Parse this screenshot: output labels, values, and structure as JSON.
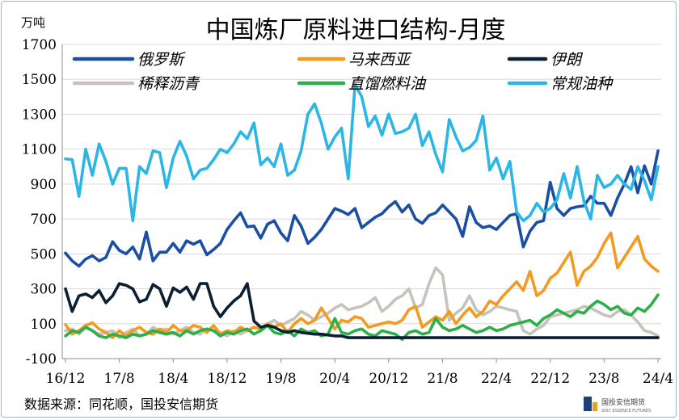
{
  "chart_data": {
    "type": "line",
    "title": "中国炼厂原料进口结构-月度",
    "unit_label": "万吨",
    "source": "数据来源：同花顺，国投安信期货",
    "logo": {
      "cn": "国投安信期货",
      "en": "SDIC ESSENCE FUTURES"
    },
    "ylim": [
      -100,
      1700
    ],
    "yticks": [
      -100,
      100,
      300,
      500,
      700,
      900,
      1100,
      1300,
      1500,
      1700
    ],
    "x_tick_labels": [
      "16/12",
      "17/8",
      "18/4",
      "18/12",
      "19/8",
      "20/4",
      "20/12",
      "21/8",
      "22/4",
      "22/12",
      "23/8",
      "24/4"
    ],
    "x_tick_index": [
      0,
      8,
      16,
      24,
      32,
      40,
      48,
      56,
      64,
      72,
      80,
      88
    ],
    "x_count": 89,
    "legend_position": "top",
    "series": [
      {
        "name": "俄罗斯",
        "color": "#1a4fa3",
        "values": [
          505,
          460,
          430,
          470,
          490,
          460,
          480,
          570,
          520,
          500,
          540,
          470,
          625,
          460,
          510,
          510,
          560,
          510,
          575,
          555,
          575,
          495,
          525,
          560,
          640,
          690,
          735,
          655,
          660,
          590,
          670,
          690,
          620,
          575,
          720,
          660,
          560,
          595,
          640,
          700,
          760,
          745,
          725,
          760,
          650,
          680,
          710,
          730,
          770,
          800,
          740,
          780,
          700,
          675,
          720,
          735,
          780,
          740,
          700,
          600,
          770,
          680,
          650,
          660,
          640,
          680,
          720,
          730,
          540,
          630,
          680,
          690,
          910,
          760,
          720,
          760,
          770,
          775,
          830,
          790,
          790,
          720,
          820,
          900,
          1000,
          850,
          1005,
          900,
          1090
        ]
      },
      {
        "name": "马来西亚",
        "color": "#f39a1f",
        "values": [
          95,
          40,
          60,
          90,
          105,
          70,
          50,
          20,
          60,
          30,
          60,
          80,
          50,
          40,
          70,
          50,
          90,
          60,
          60,
          90,
          80,
          50,
          90,
          40,
          60,
          50,
          80,
          60,
          80,
          70,
          100,
          80,
          100,
          50,
          100,
          130,
          100,
          120,
          190,
          130,
          70,
          120,
          110,
          140,
          130,
          80,
          90,
          100,
          110,
          100,
          120,
          180,
          200,
          80,
          110,
          140,
          120,
          170,
          100,
          150,
          190,
          140,
          170,
          230,
          210,
          260,
          300,
          340,
          290,
          400,
          260,
          290,
          360,
          390,
          450,
          510,
          320,
          400,
          430,
          480,
          560,
          620,
          420,
          480,
          540,
          600,
          470,
          430,
          400
        ]
      },
      {
        "name": "伊朗",
        "color": "#0b1f33",
        "values": [
          300,
          170,
          260,
          270,
          250,
          290,
          220,
          260,
          330,
          320,
          300,
          225,
          240,
          325,
          300,
          200,
          305,
          280,
          310,
          240,
          330,
          330,
          200,
          140,
          190,
          230,
          260,
          330,
          115,
          80,
          90,
          80,
          60,
          50,
          60,
          50,
          45,
          40,
          40,
          35,
          30,
          30,
          20,
          20,
          20,
          20,
          20,
          20,
          20,
          20,
          20,
          20,
          20,
          20,
          20,
          20,
          20,
          20,
          20,
          20,
          20,
          20,
          20,
          20,
          20,
          20,
          20,
          20,
          20,
          20,
          20,
          20,
          20,
          20,
          20,
          20,
          20,
          20,
          20,
          20,
          20,
          20,
          20,
          20,
          20,
          20,
          20,
          20,
          20
        ]
      },
      {
        "name": "稀释沥青",
        "color": "#c7c2bb",
        "values": [
          60,
          70,
          40,
          80,
          60,
          40,
          50,
          60,
          20,
          50,
          70,
          30,
          40,
          80,
          60,
          70,
          40,
          60,
          80,
          50,
          40,
          70,
          60,
          50,
          30,
          60,
          40,
          60,
          80,
          70,
          100,
          120,
          90,
          110,
          130,
          170,
          150,
          120,
          140,
          160,
          190,
          210,
          180,
          190,
          200,
          220,
          250,
          170,
          200,
          240,
          260,
          300,
          190,
          210,
          330,
          420,
          380,
          120,
          160,
          190,
          260,
          180,
          150,
          170,
          200,
          190,
          180,
          170,
          60,
          40,
          70,
          90,
          140,
          150,
          160,
          170,
          180,
          200,
          190,
          170,
          150,
          140,
          170,
          180,
          150,
          110,
          60,
          50,
          30
        ]
      },
      {
        "name": "直馏燃料油",
        "color": "#2db04a",
        "values": [
          30,
          60,
          50,
          80,
          60,
          30,
          20,
          40,
          30,
          20,
          40,
          30,
          40,
          60,
          50,
          40,
          50,
          30,
          60,
          40,
          60,
          70,
          60,
          30,
          50,
          40,
          60,
          70,
          40,
          60,
          90,
          50,
          40,
          60,
          30,
          70,
          50,
          60,
          30,
          40,
          130,
          50,
          40,
          60,
          70,
          40,
          30,
          60,
          50,
          40,
          10,
          50,
          60,
          40,
          50,
          130,
          80,
          60,
          70,
          90,
          70,
          50,
          60,
          80,
          60,
          70,
          90,
          100,
          110,
          120,
          90,
          130,
          150,
          180,
          160,
          140,
          170,
          160,
          200,
          230,
          210,
          180,
          200,
          160,
          150,
          190,
          170,
          210,
          265
        ]
      },
      {
        "name": "常规油种",
        "color": "#2bb6e6",
        "values": [
          1045,
          1040,
          830,
          1100,
          950,
          1130,
          1030,
          900,
          990,
          990,
          690,
          1000,
          960,
          1090,
          1080,
          880,
          1050,
          1145,
          1060,
          930,
          980,
          990,
          1040,
          1100,
          1080,
          1130,
          1200,
          1160,
          1250,
          1010,
          1050,
          1000,
          1130,
          950,
          980,
          1090,
          1300,
          1360,
          1250,
          1100,
          1170,
          1220,
          930,
          1470,
          1400,
          1230,
          1290,
          1180,
          1300,
          1190,
          1200,
          1220,
          1300,
          1120,
          1200,
          1070,
          970,
          1270,
          1170,
          1090,
          1110,
          1150,
          1290,
          980,
          1050,
          930,
          1030,
          740,
          690,
          720,
          790,
          740,
          760,
          810,
          960,
          820,
          1000,
          800,
          700,
          950,
          880,
          900,
          950,
          900,
          870,
          1000,
          920,
          810,
          1000
        ]
      }
    ]
  }
}
